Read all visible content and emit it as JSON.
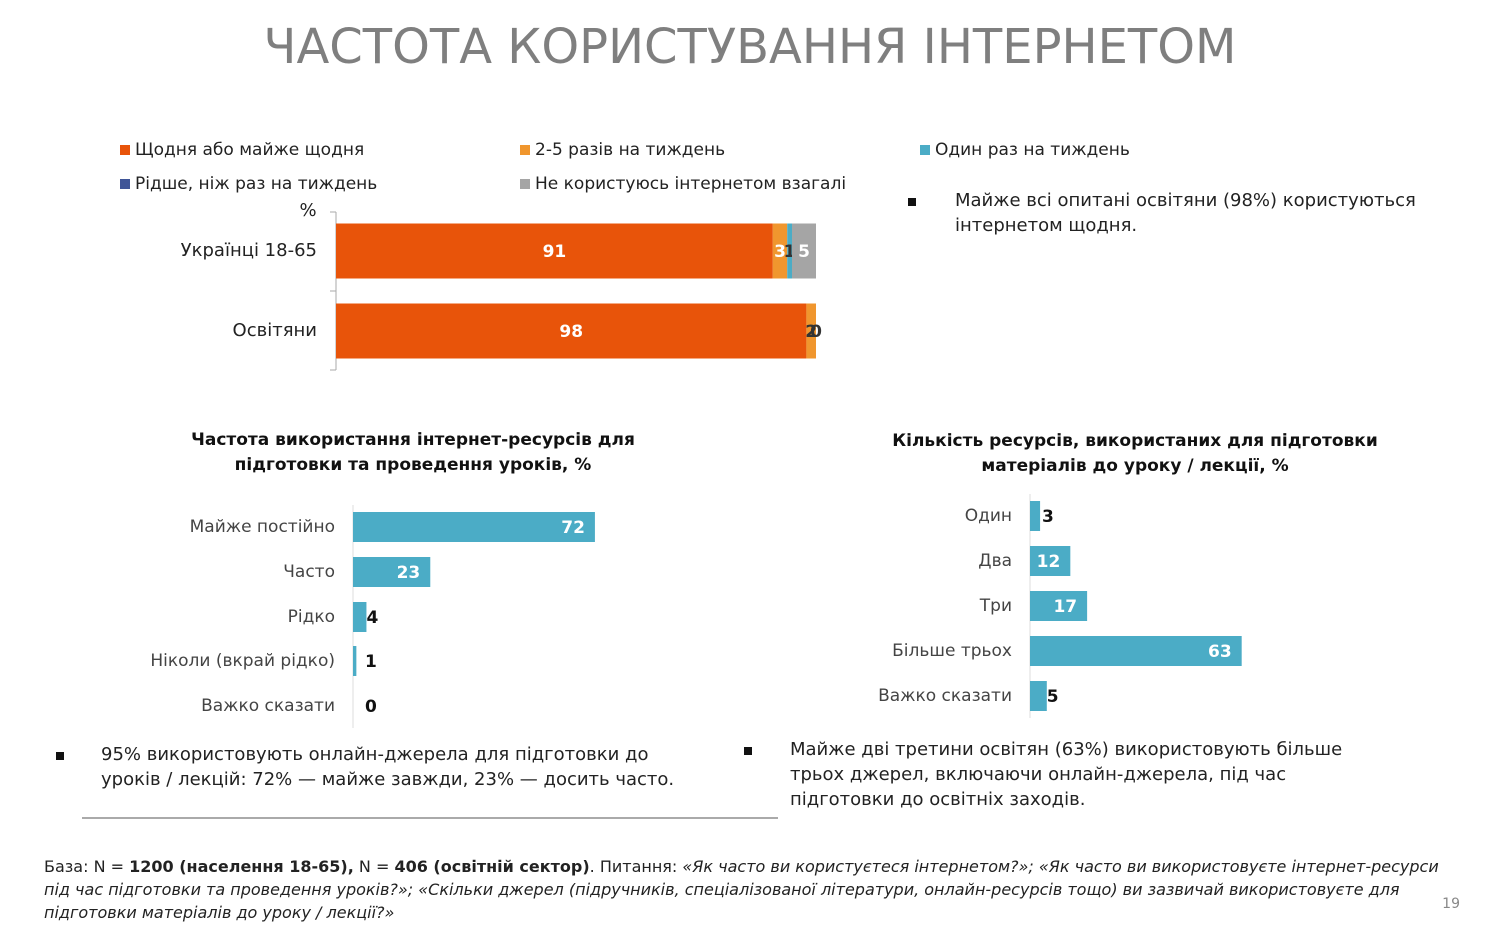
{
  "title": "ЧАСТОТА КОРИСТУВАННЯ ІНТЕРНЕТОМ",
  "chart_data": [
    {
      "type": "stacked_bar_h",
      "y_label": "%",
      "categories": [
        "Українці 18-65",
        "Освітяни"
      ],
      "series": [
        {
          "name": "Щодня або майже щодня",
          "color": "#e8540a",
          "values": [
            91,
            98
          ]
        },
        {
          "name": "2-5 разів на тиждень",
          "color": "#f0962e",
          "values": [
            3,
            2
          ]
        },
        {
          "name": "Один раз на тиждень",
          "color": "#4bacc6",
          "values": [
            1,
            0
          ]
        },
        {
          "name": "Рідше, ніж раз на тиждень",
          "color": "#3f5597",
          "values": [
            null,
            null
          ]
        },
        {
          "name": "Не користуюсь інтернетом взагалі",
          "color": "#a5a5a5",
          "values": [
            5,
            null
          ]
        }
      ]
    },
    {
      "type": "bar_h",
      "title": "Частота використання інтернет-ресурсів для підготовки та проведення уроків, %",
      "categories": [
        "Майже постійно",
        "Часто",
        "Рідко",
        "Ніколи (вкрай рідко)",
        "Важко сказати"
      ],
      "values": [
        72,
        23,
        4,
        1,
        0
      ],
      "color": "#4bacc6"
    },
    {
      "type": "bar_h",
      "title": "Кількість ресурсів, використаних для підготовки матеріалів до уроку / лекції, %",
      "categories": [
        "Один",
        "Два",
        "Три",
        "Більше трьох",
        "Важко сказати"
      ],
      "values": [
        3,
        12,
        17,
        63,
        5
      ],
      "color": "#4bacc6"
    }
  ],
  "notes": [
    "Майже всі опитані освітяни (98%) користуються інтернетом щодня.",
    "95% використовують онлайн-джерела для підготовки до уроків / лекцій: 72% — майже завжди, 23% — досить часто.",
    "Майже дві третини освітян (63%) використовують більше трьох джерел, включаючи онлайн-джерела, під час підготовки до освітніх заходів."
  ],
  "footnote": [
    "База: N = ",
    "1200 (населення 18-65),",
    " N = ",
    "406 (освітній сектор)",
    ". Питання: ",
    "«Як часто ви користуєтеся інтернетом?»; «Як часто ви використовуєте інтернет-ресурси під час підготовки та проведення уроків?»; «Скільки джерел (підручників, спеціалізованої літератури, онлайн-ресурсів тощо) ви зазвичай використовуєте для підготовки матеріалів до уроку / лекції?»"
  ],
  "page_number": "19"
}
